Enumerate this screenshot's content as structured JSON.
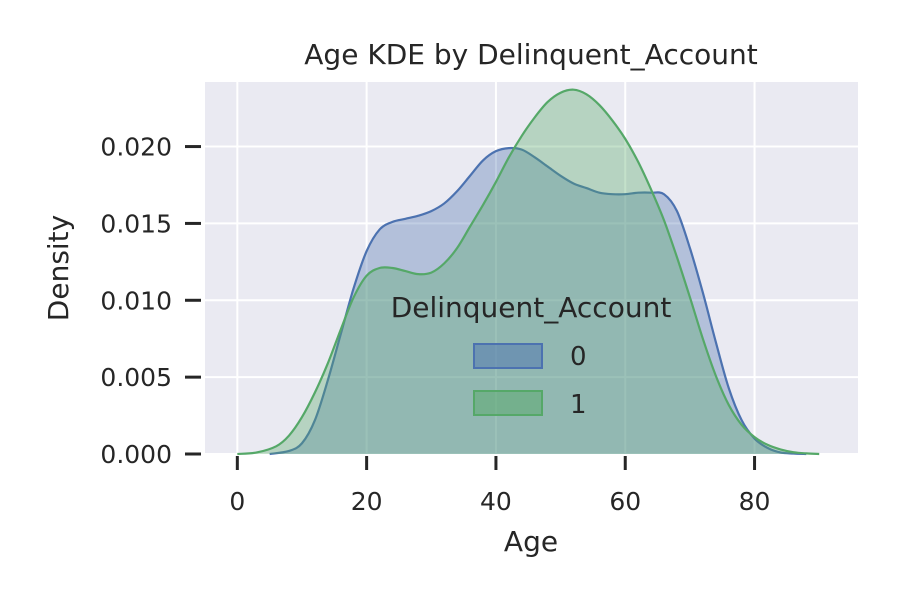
{
  "chart_data": {
    "type": "area",
    "title": "Age KDE by Delinquent_Account",
    "xlabel": "Age",
    "ylabel": "Density",
    "xlim": [
      -5,
      96
    ],
    "ylim": [
      0,
      0.0242
    ],
    "xticks": [
      0,
      20,
      40,
      60,
      80
    ],
    "xtick_labels": [
      "0",
      "20",
      "40",
      "60",
      "80"
    ],
    "yticks": [
      0,
      0.005,
      0.01,
      0.015,
      0.02
    ],
    "ytick_labels": [
      "0.000",
      "0.005",
      "0.010",
      "0.015",
      "0.020"
    ],
    "grid": true,
    "background": "#eaeaf2",
    "legend": {
      "title": "Delinquent_Account",
      "placement": "center",
      "entries": [
        "0",
        "1"
      ]
    },
    "series": [
      {
        "name": "0",
        "color": "#4c72b0",
        "x": [
          5,
          8,
          10,
          12,
          14,
          16,
          18,
          20,
          22,
          24,
          26,
          28,
          30,
          32,
          34,
          36,
          38,
          40,
          42,
          44,
          46,
          48,
          50,
          52,
          54,
          56,
          58,
          60,
          62,
          64,
          66,
          68,
          70,
          72,
          74,
          76,
          78,
          80,
          82,
          84,
          86,
          88
        ],
        "y": [
          0,
          0.0002,
          0.0007,
          0.0022,
          0.0048,
          0.0078,
          0.0108,
          0.0132,
          0.0146,
          0.0151,
          0.0153,
          0.0155,
          0.0158,
          0.0163,
          0.0171,
          0.0181,
          0.0191,
          0.0197,
          0.0199,
          0.0198,
          0.0193,
          0.0187,
          0.0181,
          0.0176,
          0.0173,
          0.017,
          0.0169,
          0.0169,
          0.017,
          0.017,
          0.0169,
          0.0158,
          0.0134,
          0.0105,
          0.0073,
          0.0043,
          0.0022,
          0.001,
          0.0004,
          0.0001,
          3e-05,
          0
        ]
      },
      {
        "name": "1",
        "color": "#55a868",
        "x": [
          0,
          3,
          6,
          8,
          10,
          12,
          14,
          16,
          18,
          20,
          22,
          24,
          26,
          28,
          30,
          32,
          34,
          36,
          38,
          40,
          42,
          44,
          46,
          48,
          50,
          52,
          54,
          56,
          58,
          60,
          62,
          64,
          66,
          68,
          70,
          72,
          74,
          76,
          78,
          80,
          82,
          84,
          86,
          88,
          90
        ],
        "y": [
          0,
          0.0001,
          0.0005,
          0.0012,
          0.0024,
          0.004,
          0.0059,
          0.0081,
          0.0102,
          0.0116,
          0.0121,
          0.0121,
          0.0119,
          0.0117,
          0.0118,
          0.0124,
          0.0134,
          0.0148,
          0.0162,
          0.0177,
          0.0193,
          0.0207,
          0.0219,
          0.0229,
          0.0235,
          0.0237,
          0.0234,
          0.0227,
          0.0217,
          0.0205,
          0.019,
          0.0172,
          0.0152,
          0.0128,
          0.0102,
          0.0075,
          0.0051,
          0.0032,
          0.0019,
          0.0011,
          0.0006,
          0.0003,
          0.00012,
          4e-05,
          0
        ]
      }
    ]
  }
}
